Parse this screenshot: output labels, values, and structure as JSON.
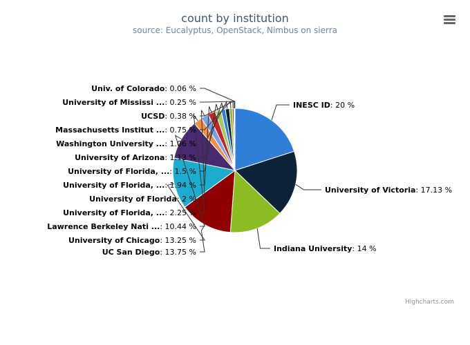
{
  "chart": {
    "title": "count by institution",
    "subtitle": "source: Eucalyptus, OpenStack, Nimbus on sierra",
    "credits": "Highcharts.com",
    "menu_icon": "hamburger-menu-icon"
  },
  "chart_data": {
    "type": "pie",
    "title": "count by institution",
    "subtitle": "source: Eucalyptus, OpenStack, Nimbus on sierra",
    "unit": "%",
    "slices": [
      {
        "name": "INESC ID",
        "value": 20,
        "value_label": "20 %",
        "color": "#2f7ed8"
      },
      {
        "name": "University of Victoria",
        "value": 17.13,
        "value_label": "17.13 %",
        "color": "#0d233a"
      },
      {
        "name": "Indiana University",
        "value": 14,
        "value_label": "14 %",
        "color": "#8bbc21"
      },
      {
        "name": "UC San Diego",
        "value": 13.75,
        "value_label": "13.75 %",
        "color": "#910000"
      },
      {
        "name": "University of Chicago",
        "value": 13.25,
        "value_label": "13.25 %",
        "color": "#1aadce"
      },
      {
        "name": "Lawrence Berkeley Nati ...",
        "value": 10.44,
        "value_label": "10.44 %",
        "color": "#492970"
      },
      {
        "name": "University of Florida, ...",
        "value": 2.25,
        "value_label": "2.25 %",
        "color": "#f28f43"
      },
      {
        "name": "University of Florida",
        "value": 2,
        "value_label": "2 %",
        "color": "#77a1e5"
      },
      {
        "name": "University of Florida, ...",
        "value": 1.94,
        "value_label": "1.94 %",
        "color": "#c42525"
      },
      {
        "name": "University of Florida, ...",
        "value": 1.5,
        "value_label": "1.5 %",
        "color": "#a6c96a"
      },
      {
        "name": "University of Arizona",
        "value": 1.13,
        "value_label": "1.13 %",
        "color": "#2f7ed8"
      },
      {
        "name": "Washington University ...",
        "value": 1.06,
        "value_label": "1.06 %",
        "color": "#0d233a"
      },
      {
        "name": "Massachusetts Institut ...",
        "value": 0.75,
        "value_label": "0.75 %",
        "color": "#8bbc21"
      },
      {
        "name": "UCSD",
        "value": 0.38,
        "value_label": "0.38 %",
        "color": "#910000"
      },
      {
        "name": "University of Mississi ...",
        "value": 0.25,
        "value_label": "0.25 %",
        "color": "#1aadce"
      },
      {
        "name": "Univ. of Colorado",
        "value": 0.06,
        "value_label": "0.06 %",
        "color": "#492970"
      }
    ]
  }
}
